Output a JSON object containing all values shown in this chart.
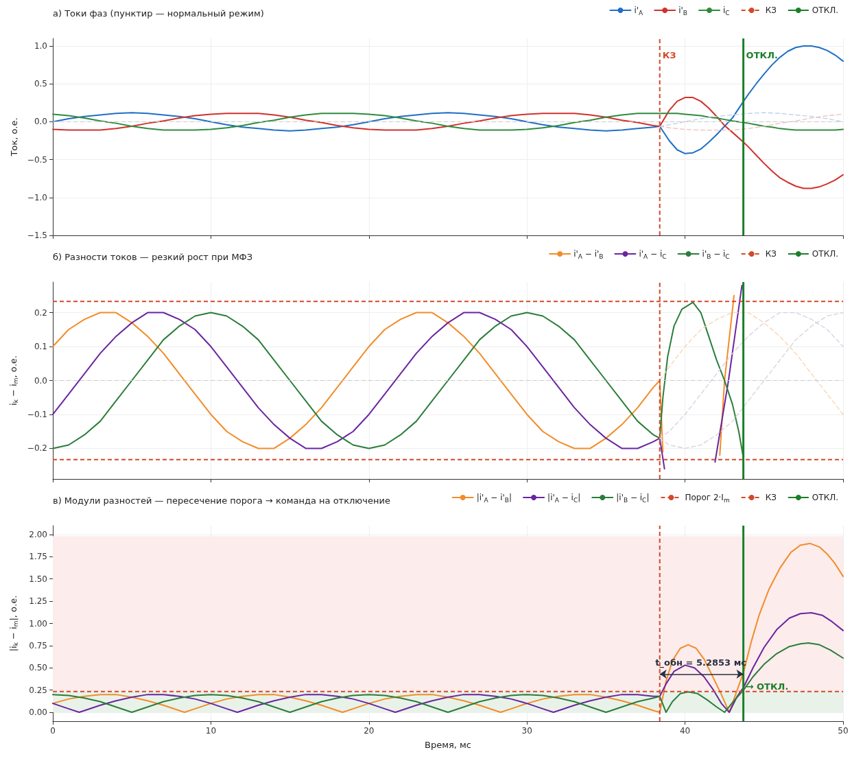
{
  "chart_data": [
    {
      "type": "line",
      "title": "а) Токи фаз (пунктир — нормальный режим)",
      "ylabel": "Ток, о.е.",
      "xlim": [
        0,
        50
      ],
      "xticks": [
        0,
        10,
        20,
        30,
        40,
        50
      ],
      "ylim": [
        -1.5,
        1.1
      ],
      "yticks": [
        {
          "value": -1.5,
          "label": "−1.5"
        },
        {
          "value": -1,
          "label": "−1.0"
        },
        {
          "value": -0.5,
          "label": "−0.5"
        },
        {
          "value": 0,
          "label": "0.0"
        },
        {
          "value": 0.5,
          "label": "0.5"
        },
        {
          "value": 1,
          "label": "1.0"
        }
      ],
      "tick_labels": "y",
      "grid": true,
      "legend": "top right",
      "marker": "none",
      "x": [
        0,
        1,
        2,
        3,
        4,
        5,
        6,
        7,
        8,
        9,
        10,
        11,
        12,
        13,
        14,
        15,
        16,
        17,
        18,
        19,
        20,
        21,
        22,
        23,
        24,
        25,
        26,
        27,
        28,
        29,
        30,
        31,
        32,
        33,
        34,
        35,
        36,
        37,
        38,
        38.4,
        39,
        39.5,
        40,
        40.5,
        41,
        41.5,
        42,
        42.5,
        43,
        43.7,
        44,
        44.5,
        45,
        45.5,
        46,
        46.5,
        47,
        47.5,
        48,
        48.5,
        49,
        49.5,
        50
      ],
      "series": [
        {
          "name": "i'$_{A}$",
          "color": "#1f6fc5",
          "values": [
            0,
            0.04,
            0.07,
            0.09,
            0.11,
            0.12,
            0.11,
            0.09,
            0.07,
            0.04,
            0,
            -0.04,
            -0.07,
            -0.09,
            -0.11,
            -0.12,
            -0.11,
            -0.09,
            -0.07,
            -0.04,
            0,
            0.04,
            0.07,
            0.09,
            0.11,
            0.12,
            0.11,
            0.09,
            0.07,
            0.04,
            0,
            -0.04,
            -0.07,
            -0.09,
            -0.11,
            -0.12,
            -0.11,
            -0.09,
            -0.07,
            -0.06,
            -0.25,
            -0.37,
            -0.42,
            -0.41,
            -0.36,
            -0.27,
            -0.17,
            -0.06,
            0.05,
            0.27,
            0.36,
            0.5,
            0.63,
            0.75,
            0.85,
            0.93,
            0.98,
            1.0,
            1.0,
            0.98,
            0.94,
            0.88,
            0.8
          ]
        },
        {
          "name": "i'$_{B}$",
          "color": "#d0312d",
          "values": [
            -0.1,
            -0.11,
            -0.11,
            -0.11,
            -0.09,
            -0.06,
            -0.02,
            0.01,
            0.05,
            0.08,
            0.1,
            0.11,
            0.11,
            0.11,
            0.09,
            0.06,
            0.02,
            -0.01,
            -0.05,
            -0.08,
            -0.1,
            -0.11,
            -0.11,
            -0.11,
            -0.09,
            -0.06,
            -0.02,
            0.01,
            0.05,
            0.08,
            0.1,
            0.11,
            0.11,
            0.11,
            0.09,
            0.06,
            0.02,
            -0.01,
            -0.05,
            -0.06,
            0.15,
            0.27,
            0.32,
            0.32,
            0.27,
            0.18,
            0.07,
            -0.05,
            -0.14,
            -0.27,
            -0.33,
            -0.44,
            -0.55,
            -0.65,
            -0.74,
            -0.8,
            -0.85,
            -0.88,
            -0.88,
            -0.86,
            -0.82,
            -0.77,
            -0.7
          ]
        },
        {
          "name": "i$_{C}$",
          "color": "#2e8b3e",
          "values": [
            0.1,
            0.08,
            0.05,
            0.01,
            -0.02,
            -0.06,
            -0.09,
            -0.11,
            -0.11,
            -0.11,
            -0.1,
            -0.08,
            -0.05,
            -0.01,
            0.02,
            0.06,
            0.09,
            0.11,
            0.11,
            0.11,
            0.1,
            0.08,
            0.05,
            0.01,
            -0.02,
            -0.06,
            -0.09,
            -0.11,
            -0.11,
            -0.11,
            -0.1,
            -0.08,
            -0.05,
            -0.01,
            0.02,
            0.06,
            0.09,
            0.11,
            0.11,
            0.11,
            0.11,
            0.11,
            0.1,
            0.09,
            0.08,
            0.06,
            0.05,
            0.03,
            0.01,
            -0.01,
            -0.02,
            -0.04,
            -0.06,
            -0.07,
            -0.09,
            -0.1,
            -0.11,
            -0.11,
            -0.11,
            -0.11,
            -0.11,
            -0.11,
            -0.1
          ]
        },
        {
          "color": "#b9cfea",
          "line_style": "dashed",
          "x": [
            38.4,
            39,
            40,
            41,
            42,
            43,
            44,
            45,
            46,
            47,
            48,
            49,
            50
          ],
          "values": [
            -0.06,
            -0.04,
            0,
            0.04,
            0.07,
            0.09,
            0.11,
            0.12,
            0.11,
            0.09,
            0.07,
            0.04,
            0
          ]
        },
        {
          "color": "#efbcbc",
          "line_style": "dashed",
          "x": [
            38.4,
            39,
            40,
            41,
            42,
            43,
            44,
            45,
            46,
            47,
            48,
            49,
            50
          ],
          "values": [
            -0.06,
            -0.08,
            -0.1,
            -0.11,
            -0.11,
            -0.11,
            -0.09,
            -0.06,
            -0.02,
            0.01,
            0.05,
            0.08,
            0.1
          ]
        }
      ],
      "ref_lines": [
        {
          "axis": "y",
          "value": 0,
          "color": "#cccccc",
          "line_style": "dashed"
        },
        {
          "axis": "x",
          "value": 38.4,
          "label": "КЗ",
          "color": "#d2492a",
          "line_style": "dashed"
        },
        {
          "axis": "x",
          "value": 43.69,
          "label": "ОТКЛ.",
          "color": "#1a7f2a",
          "line_style": "solid"
        }
      ],
      "annotations": [
        {
          "text": "КЗ",
          "x": 38.4,
          "y": 0.88
        },
        {
          "text": "ОТКЛ.",
          "x": 43.69,
          "y": 0.88
        }
      ]
    },
    {
      "type": "line",
      "title": "б) Разности токов — резкий рост при МФЗ",
      "ylabel": "i$_{k}$ − i$_{m}$, о.е.",
      "xlim": [
        0,
        50
      ],
      "xticks": [
        0,
        10,
        20,
        30,
        40,
        50
      ],
      "ylim": [
        -0.29,
        0.29
      ],
      "yticks": [
        {
          "value": -0.2,
          "label": "−0.2"
        },
        {
          "value": -0.1,
          "label": "−0.1"
        },
        {
          "value": 0,
          "label": "0.0"
        },
        {
          "value": 0.1,
          "label": "0.1"
        },
        {
          "value": 0.2,
          "label": "0.2"
        }
      ],
      "tick_labels": "y",
      "grid": true,
      "legend": "top right",
      "marker": "none",
      "series": [
        {
          "name": "i'$_{A}$ − i'$_{B}$",
          "color": "#f28c28",
          "x": [
            0,
            1,
            2,
            3,
            4,
            5,
            6,
            7,
            8,
            9,
            10,
            11,
            12,
            13,
            14,
            15,
            16,
            17,
            18,
            19,
            20,
            21,
            22,
            23,
            24,
            25,
            26,
            27,
            28,
            29,
            30,
            31,
            32,
            33,
            34,
            35,
            36,
            37,
            38,
            38.4,
            38.6,
            40,
            42.2,
            42.5,
            43.1
          ],
          "values": [
            0.1,
            0.15,
            0.18,
            0.2,
            0.2,
            0.17,
            0.13,
            0.08,
            0.02,
            -0.04,
            -0.1,
            -0.15,
            -0.18,
            -0.2,
            -0.2,
            -0.17,
            -0.13,
            -0.08,
            -0.02,
            0.04,
            0.1,
            0.15,
            0.18,
            0.2,
            0.2,
            0.17,
            0.13,
            0.08,
            0.02,
            -0.04,
            -0.1,
            -0.15,
            -0.18,
            -0.2,
            -0.2,
            -0.17,
            -0.13,
            -0.08,
            -0.02,
            0,
            -0.21,
            null,
            -0.22,
            0,
            0.25
          ]
        },
        {
          "name": "i'$_{A}$ − i$_{C}$",
          "color": "#6a25a0",
          "x": [
            0,
            1,
            2,
            3,
            4,
            5,
            6,
            7,
            8,
            9,
            10,
            11,
            12,
            13,
            14,
            15,
            16,
            17,
            18,
            19,
            20,
            21,
            22,
            23,
            24,
            25,
            26,
            27,
            28,
            29,
            30,
            31,
            32,
            33,
            34,
            35,
            36,
            37,
            38,
            38.4,
            38.7,
            40,
            41.9,
            42.75,
            43.6
          ],
          "values": [
            -0.1,
            -0.04,
            0.02,
            0.08,
            0.13,
            0.17,
            0.2,
            0.2,
            0.18,
            0.15,
            0.1,
            0.04,
            -0.02,
            -0.08,
            -0.13,
            -0.17,
            -0.2,
            -0.2,
            -0.18,
            -0.15,
            -0.1,
            -0.04,
            0.02,
            0.08,
            0.13,
            0.17,
            0.2,
            0.2,
            0.18,
            0.15,
            0.1,
            0.04,
            -0.02,
            -0.08,
            -0.13,
            -0.17,
            -0.2,
            -0.2,
            -0.18,
            -0.17,
            -0.26,
            null,
            -0.24,
            0,
            0.28
          ]
        },
        {
          "name": "i'$_{B}$ − i$_{C}$",
          "color": "#2a7d3b",
          "x": [
            0,
            1,
            2,
            3,
            4,
            5,
            6,
            7,
            8,
            9,
            10,
            11,
            12,
            13,
            14,
            15,
            16,
            17,
            18,
            19,
            20,
            21,
            22,
            23,
            24,
            25,
            26,
            27,
            28,
            29,
            30,
            31,
            32,
            33,
            34,
            35,
            36,
            37,
            38,
            38.4,
            38.6,
            38.9,
            39.3,
            39.8,
            40.5,
            41,
            41.5,
            42,
            42.5,
            43,
            43.4,
            43.7
          ],
          "values": [
            -0.2,
            -0.19,
            -0.16,
            -0.12,
            -0.06,
            0,
            0.06,
            0.12,
            0.16,
            0.19,
            0.2,
            0.19,
            0.16,
            0.12,
            0.06,
            0,
            -0.06,
            -0.12,
            -0.16,
            -0.19,
            -0.2,
            -0.19,
            -0.16,
            -0.12,
            -0.06,
            0,
            0.06,
            0.12,
            0.16,
            0.19,
            0.2,
            0.19,
            0.16,
            0.12,
            0.06,
            0,
            -0.06,
            -0.12,
            -0.16,
            -0.17,
            -0.05,
            0.07,
            0.16,
            0.21,
            0.23,
            0.2,
            0.13,
            0.06,
            0,
            -0.07,
            -0.15,
            -0.23
          ]
        },
        {
          "color": "#f6d3b0",
          "line_style": "dashed",
          "x": [
            38.4,
            39,
            40,
            41,
            42,
            43,
            44,
            45,
            46,
            47,
            48,
            49,
            50
          ],
          "values": [
            0,
            0.04,
            0.1,
            0.15,
            0.18,
            0.2,
            0.2,
            0.17,
            0.13,
            0.08,
            0.02,
            -0.04,
            -0.1
          ]
        },
        {
          "color": "#dccbe6",
          "line_style": "dashed",
          "x": [
            38.4,
            39,
            40,
            41,
            42,
            43,
            44,
            45,
            46,
            47,
            48,
            49,
            50
          ],
          "values": [
            -0.17,
            -0.15,
            -0.1,
            -0.04,
            0.02,
            0.08,
            0.13,
            0.17,
            0.2,
            0.2,
            0.18,
            0.15,
            0.1
          ]
        },
        {
          "color": "#cfd6d0",
          "line_style": "dashed",
          "x": [
            38.4,
            39,
            40,
            41,
            42,
            43,
            44,
            45,
            46,
            47,
            48,
            49,
            50
          ],
          "values": [
            -0.17,
            -0.19,
            -0.2,
            -0.19,
            -0.16,
            -0.12,
            -0.06,
            0,
            0.06,
            0.12,
            0.16,
            0.19,
            0.2
          ]
        }
      ],
      "ref_lines": [
        {
          "axis": "y",
          "value": 0,
          "color": "#cccccc",
          "line_style": "dashed"
        },
        {
          "axis": "y",
          "value": 0.233,
          "color": "#d2492a",
          "line_style": "dashed"
        },
        {
          "axis": "y",
          "value": -0.233,
          "color": "#d2492a",
          "line_style": "dashed"
        },
        {
          "axis": "x",
          "value": 38.4,
          "label": "КЗ",
          "color": "#d2492a",
          "line_style": "dashed"
        },
        {
          "axis": "x",
          "value": 43.69,
          "label": "ОТКЛ.",
          "color": "#1a7f2a",
          "line_style": "solid"
        }
      ]
    },
    {
      "type": "line",
      "title": "в) Модули разностей — пересечение порога → команда на отключение",
      "xlabel": "Время, мс",
      "ylabel": "|i$_{k}$ − i$_{m}$|, о.е.",
      "xlim": [
        0,
        50
      ],
      "xticks": [
        0,
        10,
        20,
        30,
        40,
        50
      ],
      "ylim": [
        -0.1,
        2.1
      ],
      "yticks": [
        {
          "value": 0,
          "label": "0.00"
        },
        {
          "value": 0.25,
          "label": "0.25"
        },
        {
          "value": 0.5,
          "label": "0.50"
        },
        {
          "value": 0.75,
          "label": "0.75"
        },
        {
          "value": 1,
          "label": "1.00"
        },
        {
          "value": 1.25,
          "label": "1.25"
        },
        {
          "value": 1.5,
          "label": "1.50"
        },
        {
          "value": 1.75,
          "label": "1.75"
        },
        {
          "value": 2,
          "label": "2.00"
        }
      ],
      "grid": true,
      "legend": "top right",
      "marker": "none",
      "series": [
        {
          "name": "|i'$_{A}$ − i'$_{B}$|",
          "color": "#f28c28",
          "x": [
            0,
            1,
            2,
            3,
            4,
            5,
            6,
            7,
            8,
            8.33,
            9,
            10,
            11,
            12,
            13,
            14,
            15,
            16,
            17,
            18,
            18.33,
            19,
            20,
            21,
            22,
            23,
            24,
            25,
            26,
            27,
            28,
            28.33,
            29,
            30,
            31,
            32,
            33,
            34,
            35,
            36,
            37,
            38,
            38.4,
            38.8,
            39.2,
            39.7,
            40.2,
            40.7,
            41.2,
            41.7,
            42.3,
            42.8,
            43.3,
            43.7,
            44.2,
            44.7,
            45.3,
            46,
            46.7,
            47.3,
            47.9,
            48.5,
            49,
            49.5,
            50
          ],
          "values": [
            0.1,
            0.15,
            0.18,
            0.2,
            0.2,
            0.17,
            0.13,
            0.08,
            0.02,
            0,
            0.04,
            0.1,
            0.15,
            0.18,
            0.2,
            0.2,
            0.17,
            0.13,
            0.08,
            0.02,
            0,
            0.04,
            0.1,
            0.15,
            0.18,
            0.2,
            0.2,
            0.17,
            0.13,
            0.08,
            0.02,
            0,
            0.04,
            0.1,
            0.15,
            0.18,
            0.2,
            0.2,
            0.17,
            0.13,
            0.08,
            0.02,
            0,
            0.35,
            0.58,
            0.72,
            0.76,
            0.72,
            0.6,
            0.42,
            0.2,
            0,
            0.25,
            0.45,
            0.8,
            1.1,
            1.38,
            1.62,
            1.8,
            1.88,
            1.9,
            1.86,
            1.78,
            1.67,
            1.53
          ]
        },
        {
          "name": "|i'$_{A}$ − i$_{C}$|",
          "color": "#6a25a0",
          "x": [
            0,
            1,
            1.67,
            2,
            3,
            4,
            5,
            6,
            7,
            8,
            9,
            10,
            11,
            11.67,
            12,
            13,
            14,
            15,
            16,
            17,
            18,
            19,
            20,
            21,
            21.67,
            22,
            23,
            24,
            25,
            26,
            27,
            28,
            29,
            30,
            31,
            31.67,
            32,
            33,
            34,
            35,
            36,
            37,
            38,
            38.4,
            38.8,
            39.3,
            40,
            40.6,
            41.2,
            41.8,
            42.3,
            42.8,
            43.3,
            43.7,
            44.3,
            45,
            45.8,
            46.6,
            47.3,
            48,
            48.7,
            49.3,
            50
          ],
          "values": [
            0.1,
            0.04,
            0,
            0.02,
            0.08,
            0.13,
            0.17,
            0.2,
            0.2,
            0.18,
            0.15,
            0.1,
            0.04,
            0,
            0.02,
            0.08,
            0.13,
            0.17,
            0.2,
            0.2,
            0.18,
            0.15,
            0.1,
            0.04,
            0,
            0.02,
            0.08,
            0.13,
            0.17,
            0.2,
            0.2,
            0.18,
            0.15,
            0.1,
            0.04,
            0,
            0.02,
            0.08,
            0.13,
            0.17,
            0.2,
            0.2,
            0.18,
            0.18,
            0.32,
            0.46,
            0.53,
            0.5,
            0.4,
            0.25,
            0.1,
            0,
            0.18,
            0.28,
            0.5,
            0.73,
            0.93,
            1.06,
            1.11,
            1.12,
            1.09,
            1.02,
            0.92
          ]
        },
        {
          "name": "|i'$_{B}$ − i$_{C}$|",
          "color": "#2a7d3b",
          "x": [
            0,
            1,
            2,
            3,
            4,
            5,
            6,
            7,
            8,
            9,
            10,
            11,
            12,
            13,
            14,
            15,
            16,
            17,
            18,
            19,
            20,
            21,
            22,
            23,
            24,
            25,
            26,
            27,
            28,
            29,
            30,
            31,
            32,
            33,
            34,
            35,
            36,
            37,
            38,
            38.4,
            38.8,
            39.2,
            39.7,
            40.2,
            40.8,
            41.4,
            42,
            42.5,
            43.1,
            43.7,
            44.3,
            45,
            45.8,
            46.6,
            47.3,
            47.8,
            48.5,
            49.2,
            50
          ],
          "values": [
            0.2,
            0.19,
            0.16,
            0.12,
            0.06,
            0,
            0.06,
            0.12,
            0.16,
            0.19,
            0.2,
            0.19,
            0.16,
            0.12,
            0.06,
            0,
            0.06,
            0.12,
            0.16,
            0.19,
            0.2,
            0.19,
            0.16,
            0.12,
            0.06,
            0,
            0.06,
            0.12,
            0.16,
            0.19,
            0.2,
            0.19,
            0.16,
            0.12,
            0.06,
            0,
            0.06,
            0.12,
            0.16,
            0.18,
            0,
            0.12,
            0.21,
            0.23,
            0.21,
            0.14,
            0.06,
            0,
            0.13,
            0.25,
            0.4,
            0.54,
            0.66,
            0.74,
            0.77,
            0.78,
            0.76,
            0.7,
            0.61
          ]
        }
      ],
      "bands": [
        {
          "axis": "y",
          "from": 0.233,
          "to": 1.98,
          "color": "#fcecec"
        },
        {
          "axis": "y",
          "from": 0,
          "to": 0.233,
          "color": "#e9f2e9"
        }
      ],
      "ref_lines": [
        {
          "axis": "y",
          "value": 0.233,
          "label": "Порог 2·I$_{m}$",
          "color": "#d2492a",
          "line_style": "dashed"
        },
        {
          "axis": "x",
          "value": 38.4,
          "label": "КЗ",
          "color": "#d2492a",
          "line_style": "dashed"
        },
        {
          "axis": "x",
          "value": 43.69,
          "label": "ОТКЛ.",
          "color": "#1a7f2a",
          "line_style": "solid"
        }
      ],
      "annotations": [
        {
          "text": "t_обн = 5.2853 мс",
          "x": 41.0,
          "y": 0.43
        },
        {
          "text": "→ ОТКЛ.",
          "x": 43.69,
          "y": 0.29
        }
      ]
    }
  ]
}
